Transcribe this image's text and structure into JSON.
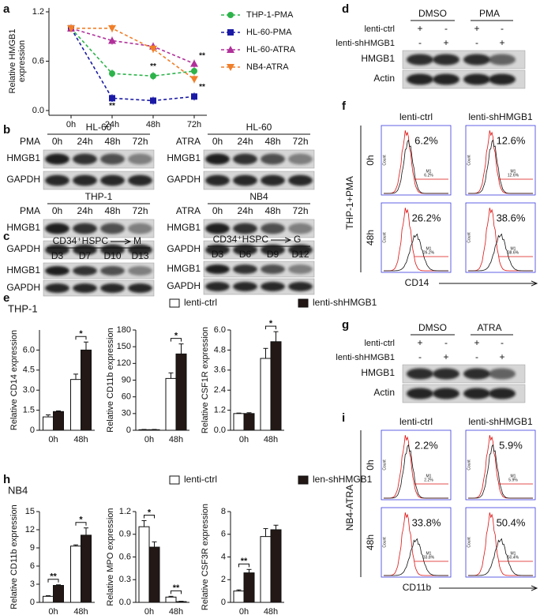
{
  "panel_letters": [
    "a",
    "b",
    "c",
    "d",
    "e",
    "f",
    "g",
    "h",
    "i"
  ],
  "chart_data": [
    {
      "type": "line",
      "ylabel": [
        "Relative HMGB1",
        "expression"
      ],
      "categories": [
        "0h",
        "24h",
        "48h",
        "72h"
      ],
      "ylim": [
        0,
        1.2
      ],
      "yticks": [
        {
          "value": 0,
          "label": "0.0"
        },
        0.6,
        {
          "value": 1.2,
          "label": "1.2"
        }
      ],
      "series": [
        {
          "name": "THP-1-PMA",
          "color": "#2db34a",
          "marker": "circle",
          "values": [
            1.0,
            0.45,
            0.42,
            0.48
          ],
          "significance": [
            null,
            null,
            "**",
            null
          ]
        },
        {
          "name": "HL-60-PMA",
          "color": "#1a1aa6",
          "marker": "square",
          "values": [
            1.0,
            0.15,
            0.12,
            0.17
          ],
          "significance": [
            null,
            "**",
            null,
            null
          ]
        },
        {
          "name": "HL-60-ATRA",
          "color": "#b0309a",
          "marker": "triangle-up",
          "values": [
            1.0,
            0.85,
            0.78,
            0.57
          ],
          "significance": [
            null,
            null,
            null,
            "**"
          ]
        },
        {
          "name": "NB4-ATRA",
          "color": "#f07f2a",
          "marker": "triangle-down",
          "values": [
            1.0,
            1.0,
            0.75,
            0.38
          ],
          "significance": [
            null,
            null,
            null,
            "**"
          ]
        }
      ]
    },
    {
      "type": "bar",
      "title": "THP-1",
      "ylabel": "Relative CD14 expression",
      "categories": [
        "0h",
        "48h"
      ],
      "ylim": [
        0,
        7.5
      ],
      "yticks": [
        0,
        1.5,
        {
          "value": 3,
          "label": "3.0"
        },
        4.5,
        {
          "value": 6,
          "label": "6.0"
        }
      ],
      "series": [
        {
          "name": "lenti-ctrl",
          "color": "#ffffff",
          "values": [
            1.0,
            3.8
          ],
          "errors": [
            0.15,
            0.4
          ]
        },
        {
          "name": "lenti-shHMGB1",
          "color": "#231815",
          "values": [
            1.4,
            6.0
          ],
          "errors": [
            0.05,
            0.6
          ]
        }
      ],
      "significance": [
        null,
        "*"
      ]
    },
    {
      "type": "bar",
      "ylabel": "Relative CD11b expression",
      "categories": [
        "0h",
        "48h"
      ],
      "ylim": [
        0,
        180
      ],
      "yticks": [
        0,
        30,
        60,
        90,
        120,
        150,
        180
      ],
      "series": [
        {
          "name": "lenti-ctrl",
          "color": "#ffffff",
          "values": [
            1,
            93
          ],
          "errors": [
            0.5,
            10
          ]
        },
        {
          "name": "lenti-shHMGB1",
          "color": "#231815",
          "values": [
            1,
            137
          ],
          "errors": [
            0.5,
            18
          ]
        }
      ],
      "significance": [
        null,
        "*"
      ]
    },
    {
      "type": "bar",
      "ylabel": "Relative CSF1R expression",
      "categories": [
        "0h",
        "48h"
      ],
      "ylim": [
        0,
        6
      ],
      "yticks": [
        {
          "value": 0,
          "label": "0.0"
        },
        1.2,
        2.4,
        3.6,
        4.8,
        {
          "value": 6,
          "label": "6.0"
        }
      ],
      "series": [
        {
          "name": "lenti-ctrl",
          "color": "#ffffff",
          "values": [
            1.0,
            4.3
          ],
          "errors": [
            0.03,
            0.6
          ]
        },
        {
          "name": "lenti-shHMGB1",
          "color": "#231815",
          "values": [
            1.0,
            5.3
          ],
          "errors": [
            0.05,
            0.6
          ]
        }
      ],
      "significance": [
        null,
        "*"
      ]
    },
    {
      "type": "bar",
      "title": "NB4",
      "ylabel": "Relative CD11b expression",
      "categories": [
        "0h",
        "48h"
      ],
      "ylim": [
        0,
        15
      ],
      "yticks": [
        0,
        3,
        6,
        9,
        12,
        15
      ],
      "series": [
        {
          "name": "lenti-ctrl",
          "color": "#ffffff",
          "values": [
            1.0,
            9.3
          ],
          "errors": [
            0.1,
            0.2
          ]
        },
        {
          "name": "len-shHMGB1",
          "color": "#231815",
          "values": [
            2.8,
            11.1
          ],
          "errors": [
            0.1,
            1.2
          ]
        }
      ],
      "significance": [
        "**",
        "*"
      ]
    },
    {
      "type": "bar",
      "ylabel": "Relative MPO expression",
      "categories": [
        "0h",
        "48h"
      ],
      "ylim": [
        0,
        1.2
      ],
      "yticks": [
        {
          "value": 0,
          "label": "0.0"
        },
        0.3,
        0.6,
        0.9,
        1.2
      ],
      "series": [
        {
          "name": "lenti-ctrl",
          "color": "#ffffff",
          "values": [
            1.0,
            0.07
          ],
          "errors": [
            0.08,
            0.01
          ]
        },
        {
          "name": "len-shHMGB1",
          "color": "#231815",
          "values": [
            0.73,
            0.01
          ],
          "errors": [
            0.07,
            0.005
          ]
        }
      ],
      "significance": [
        "*",
        "**"
      ]
    },
    {
      "type": "bar",
      "ylabel": "Relative CSF3R expression",
      "categories": [
        "0h",
        "48h"
      ],
      "ylim": [
        0,
        8
      ],
      "yticks": [
        0,
        2,
        4,
        6,
        8
      ],
      "series": [
        {
          "name": "lenti-ctrl",
          "color": "#ffffff",
          "values": [
            1.0,
            5.8
          ],
          "errors": [
            0.1,
            0.7
          ]
        },
        {
          "name": "len-shHMGB1",
          "color": "#231815",
          "values": [
            2.6,
            6.4
          ],
          "errors": [
            0.3,
            0.4
          ]
        }
      ],
      "significance": [
        "**",
        null
      ]
    }
  ],
  "panel_b": [
    {
      "cell": "HL-60",
      "treatment": "PMA",
      "lanes": [
        "0h",
        "24h",
        "48h",
        "72h"
      ],
      "rows": [
        "HMGB1",
        "GAPDH"
      ]
    },
    {
      "cell": "HL-60",
      "treatment": "ATRA",
      "lanes": [
        "0h",
        "24h",
        "48h",
        "72h"
      ],
      "rows": [
        "HMGB1",
        "GAPDH"
      ]
    },
    {
      "cell": "THP-1",
      "treatment": "PMA",
      "lanes": [
        "0h",
        "24h",
        "48h",
        "72h"
      ],
      "rows": [
        "HMGB1",
        "GAPDH"
      ]
    },
    {
      "cell": "NB4",
      "treatment": "ATRA",
      "lanes": [
        "0h",
        "24h",
        "48h",
        "72h"
      ],
      "rows": [
        "HMGB1",
        "GAPDH"
      ]
    }
  ],
  "panel_c": [
    {
      "title": "CD34⁺HSPC",
      "target": "M",
      "lanes": [
        "D3",
        "D7",
        "D10",
        "D13"
      ],
      "rows": [
        "HMGB1",
        "GAPDH"
      ]
    },
    {
      "title": "CD34⁺HSPC",
      "target": "G",
      "lanes": [
        "D3",
        "D6",
        "D9",
        "D12"
      ],
      "rows": [
        "HMGB1",
        "GAPDH"
      ]
    }
  ],
  "panel_d": {
    "groups": [
      "DMSO",
      "PMA"
    ],
    "rows": [
      {
        "label": "lenti-ctrl",
        "marks": [
          "+",
          "-",
          "+",
          "-"
        ]
      },
      {
        "label": "lenti-shHMGB1",
        "marks": [
          "-",
          "+",
          "-",
          "+"
        ]
      }
    ],
    "blots": [
      "HMGB1",
      "Actin"
    ]
  },
  "panel_g": {
    "groups": [
      "DMSO",
      "ATRA"
    ],
    "rows": [
      {
        "label": "lenti-ctrl",
        "marks": [
          "+",
          "-",
          "+",
          "-"
        ]
      },
      {
        "label": "lenti-shHMGB1",
        "marks": [
          "-",
          "+",
          "-",
          "+"
        ]
      }
    ],
    "blots": [
      "HMGB1",
      "Actin"
    ]
  },
  "panel_f": {
    "columns": [
      "lenti-ctrl",
      "lenti-shHMGB1"
    ],
    "rows": [
      "0h",
      "48h"
    ],
    "side_label": "THP-1+PMA",
    "x_label": "CD14",
    "axis_label": "Count",
    "gate": "M1",
    "percentages": [
      [
        "6.2%",
        "12.6%"
      ],
      [
        "26.2%",
        "38.6%"
      ]
    ]
  },
  "panel_i": {
    "columns": [
      "lenti-ctrl",
      "lenti-shHMGB1"
    ],
    "rows": [
      "0h",
      "48h"
    ],
    "side_label": "NB4-ATRA",
    "x_label": "CD11b",
    "axis_label": "Count",
    "gate": "M1",
    "percentages": [
      [
        "2.2%",
        "5.9%"
      ],
      [
        "33.8%",
        "50.4%"
      ]
    ]
  }
}
